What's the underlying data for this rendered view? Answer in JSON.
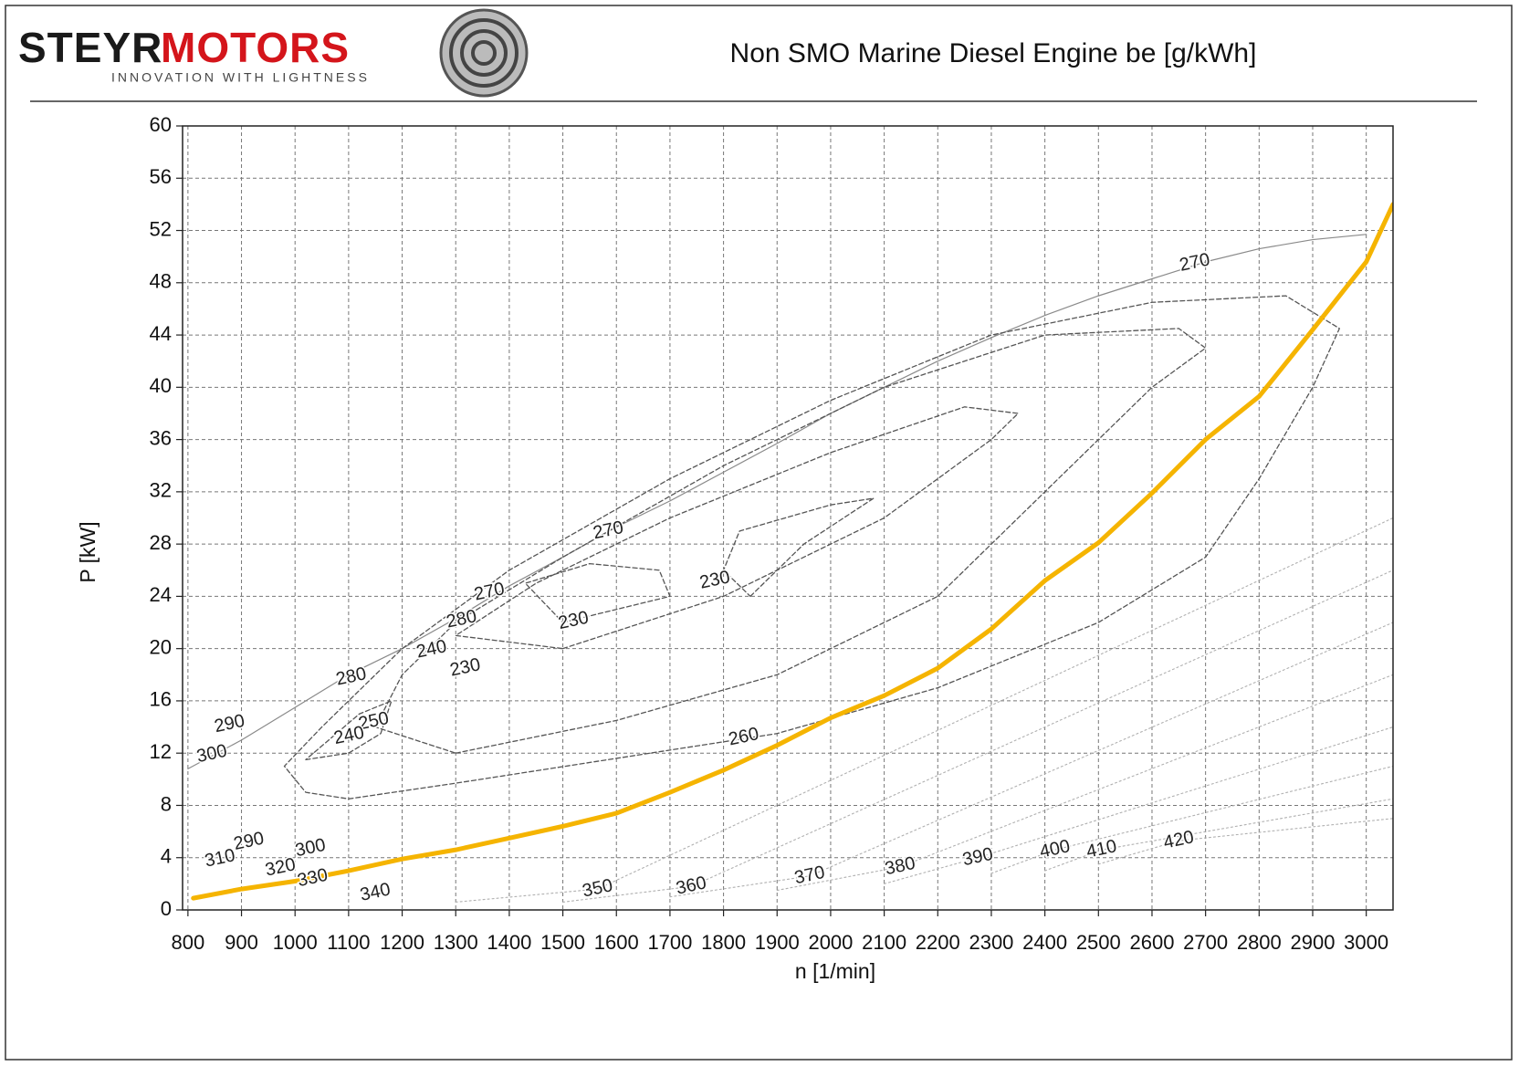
{
  "header": {
    "brand_1": "STEYR",
    "brand_2": "MOTORS",
    "tagline": "INNOVATION WITH LIGHTNESS"
  },
  "chart_data": {
    "type": "line",
    "title": "Non SMO Marine Diesel Engine be [g/kWh]",
    "x_label": "n [1/min]",
    "y_label": "P [kW]",
    "xlim": [
      790,
      3050
    ],
    "ylim": [
      0,
      60
    ],
    "xticks": [
      800,
      900,
      1000,
      1100,
      1200,
      1300,
      1400,
      1500,
      1600,
      1700,
      1800,
      1900,
      2000,
      2100,
      2200,
      2300,
      2400,
      2500,
      2600,
      2700,
      2800,
      2900,
      3000
    ],
    "yticks": [
      0,
      4,
      8,
      12,
      16,
      20,
      24,
      28,
      32,
      36,
      40,
      44,
      48,
      52,
      56,
      60
    ],
    "grid": true,
    "series": [
      {
        "color": "#8a8a8a",
        "style": "solid",
        "line_width": 1.2,
        "x": [
          800,
          900,
          1000,
          1100,
          1200,
          1300,
          1400,
          1500,
          1600,
          1700,
          1800,
          1900,
          2000,
          2100,
          2200,
          2300,
          2400,
          2500,
          2600,
          2700,
          2800,
          2900,
          3000
        ],
        "values": [
          10.8,
          13,
          15.5,
          18,
          20,
          22.3,
          24.8,
          27,
          29.3,
          31.3,
          33.5,
          35.7,
          38,
          40,
          42,
          43.8,
          45.5,
          47,
          48.3,
          49.6,
          50.6,
          51.3,
          51.7
        ]
      },
      {
        "color": "#555555",
        "style": "dashed",
        "line_width": 1.3,
        "x": [
          1100,
          1300,
          1600,
          1900,
          2200,
          2500,
          2700,
          2800,
          2900,
          2950,
          2850,
          2600,
          2300,
          2000,
          1700,
          1400,
          1200,
          1050,
          980,
          1020,
          1100
        ],
        "values": [
          8.5,
          9.7,
          11.6,
          13.5,
          17,
          22,
          27,
          33,
          40,
          44.5,
          47,
          46.5,
          44,
          39,
          33,
          26,
          20,
          14,
          11,
          9,
          8.5
        ]
      },
      {
        "color": "#555555",
        "style": "dashed",
        "line_width": 1.3,
        "x": [
          1300,
          1600,
          1900,
          2200,
          2400,
          2600,
          2700,
          2650,
          2400,
          2100,
          1800,
          1500,
          1300,
          1200,
          1150,
          1300
        ],
        "values": [
          12,
          14.5,
          18,
          24,
          32,
          40,
          43,
          44.5,
          44,
          40,
          34,
          27,
          22,
          18,
          14,
          12
        ]
      },
      {
        "color": "#555555",
        "style": "dashed",
        "line_width": 1.3,
        "x": [
          1500,
          1800,
          2100,
          2300,
          2350,
          2250,
          2000,
          1700,
          1450,
          1300,
          1500
        ],
        "values": [
          20,
          24,
          30,
          36,
          38,
          38.5,
          35,
          30,
          25,
          21,
          20
        ]
      },
      {
        "color": "#555555",
        "style": "dashed",
        "line_width": 1.3,
        "x": [
          1500,
          1700,
          1680,
          1550,
          1430,
          1500
        ],
        "values": [
          22,
          24,
          26,
          26.5,
          25,
          22
        ]
      },
      {
        "color": "#555555",
        "style": "dashed",
        "line_width": 1.3,
        "x": [
          1850,
          1950,
          2080,
          2000,
          1830,
          1800,
          1850
        ],
        "values": [
          24,
          28,
          31.5,
          31,
          29,
          26,
          24
        ]
      },
      {
        "color": "#555555",
        "style": "dashed",
        "line_width": 1.3,
        "x": [
          1020,
          1100,
          1160,
          1180,
          1120,
          1020
        ],
        "values": [
          11.5,
          12,
          13.5,
          16,
          15,
          11.5
        ]
      },
      {
        "color": "#b0b0b0",
        "style": "dotted",
        "line_width": 1.1,
        "x": [
          1300,
          1565,
          3050
        ],
        "values": [
          0.6,
          1.6,
          30
        ]
      },
      {
        "color": "#b0b0b0",
        "style": "dotted",
        "line_width": 1.1,
        "x": [
          1500,
          1740,
          3050
        ],
        "values": [
          0.6,
          1.8,
          26
        ]
      },
      {
        "color": "#b0b0b0",
        "style": "dotted",
        "line_width": 1.1,
        "x": [
          1700,
          1961,
          3050
        ],
        "values": [
          1,
          2.6,
          22
        ]
      },
      {
        "color": "#b0b0b0",
        "style": "dotted",
        "line_width": 1.1,
        "x": [
          1900,
          2130,
          3050
        ],
        "values": [
          1.5,
          3.3,
          18
        ]
      },
      {
        "color": "#b0b0b0",
        "style": "dotted",
        "line_width": 1.1,
        "x": [
          2100,
          2275,
          3050
        ],
        "values": [
          2,
          4,
          14
        ]
      },
      {
        "color": "#b0b0b0",
        "style": "dotted",
        "line_width": 1.1,
        "x": [
          2300,
          2419,
          3050
        ],
        "values": [
          2.8,
          4.6,
          11
        ]
      },
      {
        "color": "#b0b0b0",
        "style": "dotted",
        "line_width": 1.1,
        "x": [
          2400,
          2506,
          3050
        ],
        "values": [
          3,
          4.6,
          8.5
        ]
      },
      {
        "color": "#b0b0b0",
        "style": "dotted",
        "line_width": 1.1,
        "x": [
          2500,
          2650,
          3050
        ],
        "values": [
          3.5,
          5.3,
          7
        ]
      },
      {
        "color": "#f5b400",
        "style": "solid",
        "line_width": 5,
        "x": [
          810,
          900,
          1000,
          1100,
          1200,
          1300,
          1400,
          1500,
          1600,
          1700,
          1800,
          1900,
          2000,
          2100,
          2200,
          2300,
          2400,
          2500,
          2600,
          2700,
          2800,
          2900,
          3000,
          3050
        ],
        "values": [
          0.9,
          1.6,
          2.2,
          3.0,
          3.9,
          4.6,
          5.5,
          6.4,
          7.4,
          9.0,
          10.7,
          12.6,
          14.7,
          16.4,
          18.5,
          21.5,
          25.2,
          28.1,
          31.9,
          36,
          39.3,
          44.4,
          49.6,
          54
        ]
      }
    ],
    "contour_labels": [
      {
        "value": 270,
        "x": 2680,
        "y": 49.5
      },
      {
        "value": 270,
        "x": 1585,
        "y": 29.0
      },
      {
        "value": 270,
        "x": 1363,
        "y": 24.3
      },
      {
        "value": 280,
        "x": 1311,
        "y": 22.2
      },
      {
        "value": 240,
        "x": 1255,
        "y": 19.9
      },
      {
        "value": 230,
        "x": 1318,
        "y": 18.5
      },
      {
        "value": 280,
        "x": 1105,
        "y": 17.8
      },
      {
        "value": 250,
        "x": 1147,
        "y": 14.4
      },
      {
        "value": 240,
        "x": 1101,
        "y": 13.3
      },
      {
        "value": 300,
        "x": 845,
        "y": 11.9
      },
      {
        "value": 290,
        "x": 878,
        "y": 14.2
      },
      {
        "value": 290,
        "x": 914,
        "y": 5.2
      },
      {
        "value": 310,
        "x": 860,
        "y": 3.9
      },
      {
        "value": 320,
        "x": 973,
        "y": 3.2
      },
      {
        "value": 300,
        "x": 1029,
        "y": 4.7
      },
      {
        "value": 330,
        "x": 1033,
        "y": 2.4
      },
      {
        "value": 340,
        "x": 1150,
        "y": 1.3
      },
      {
        "value": 350,
        "x": 1565,
        "y": 1.6
      },
      {
        "value": 360,
        "x": 1740,
        "y": 1.8
      },
      {
        "value": 370,
        "x": 1961,
        "y": 2.6
      },
      {
        "value": 380,
        "x": 2130,
        "y": 3.3
      },
      {
        "value": 390,
        "x": 2275,
        "y": 4.0
      },
      {
        "value": 400,
        "x": 2419,
        "y": 4.6
      },
      {
        "value": 410,
        "x": 2506,
        "y": 4.6
      },
      {
        "value": 420,
        "x": 2650,
        "y": 5.3
      },
      {
        "value": 260,
        "x": 1838,
        "y": 13.2
      },
      {
        "value": 230,
        "x": 1520,
        "y": 22.1
      },
      {
        "value": 230,
        "x": 1784,
        "y": 25.2
      }
    ]
  }
}
